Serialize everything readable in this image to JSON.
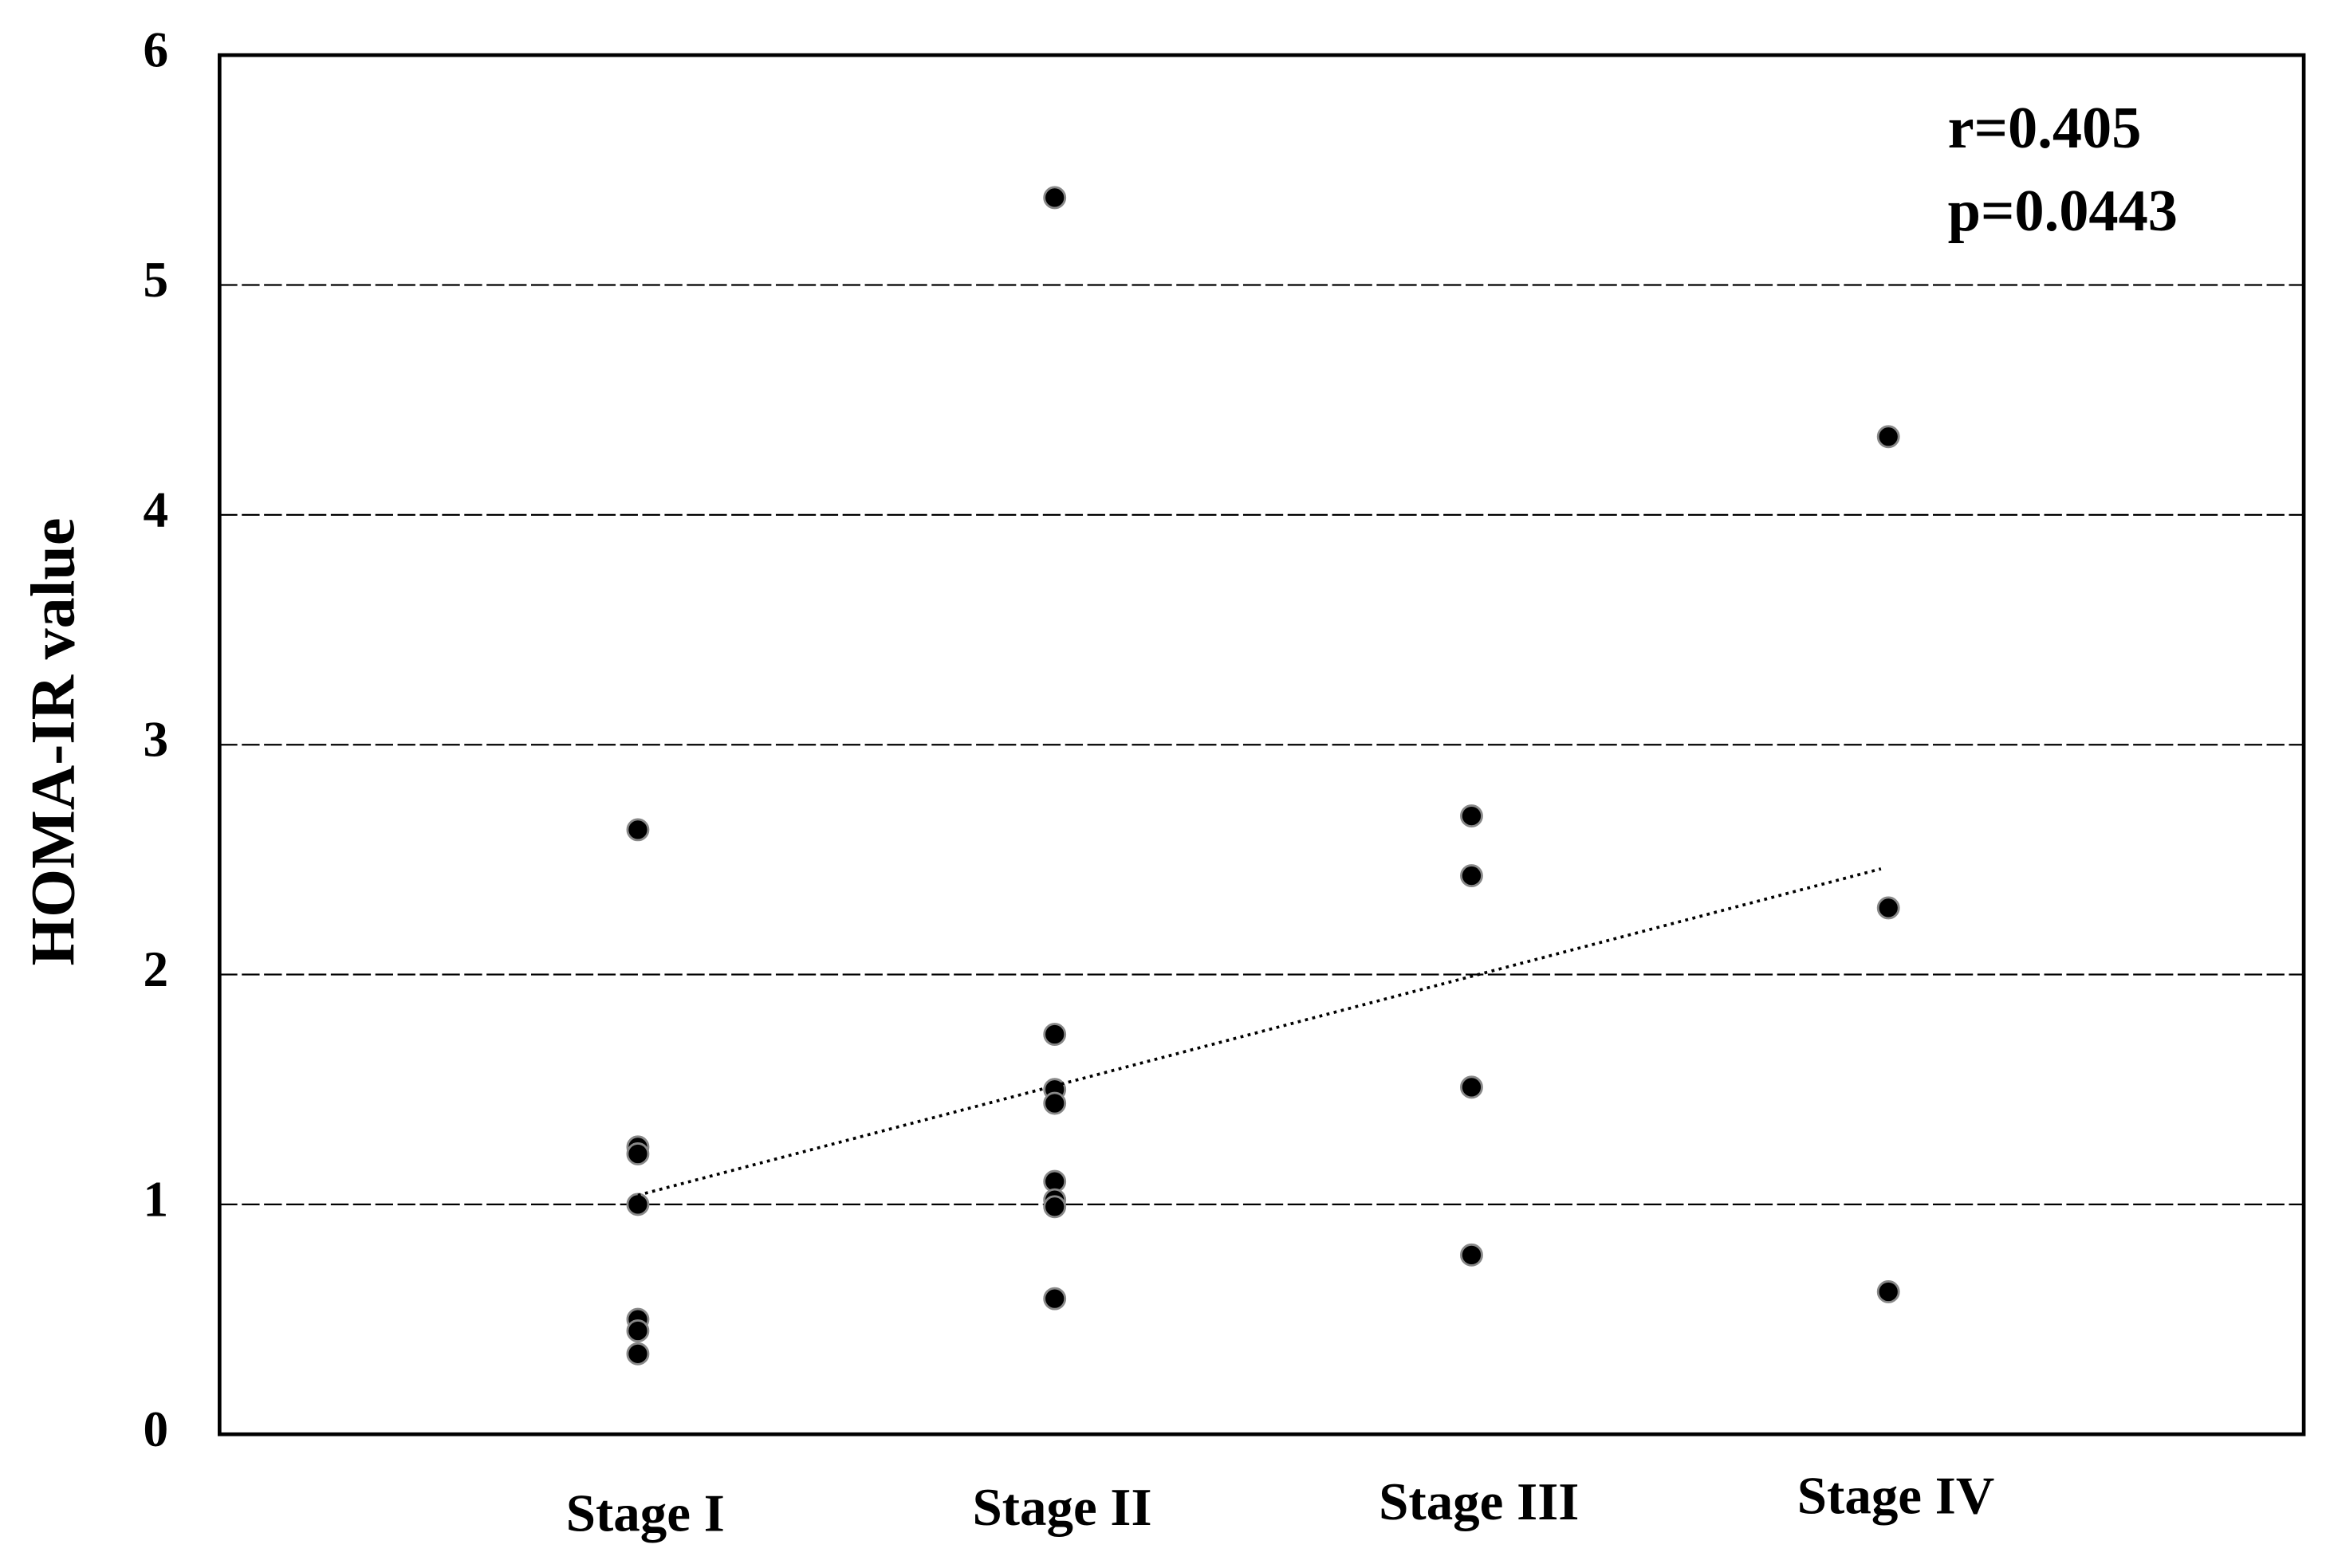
{
  "chart_data": {
    "type": "scatter",
    "y_label": "HOMA-IR value",
    "categories": [
      "Stage I",
      "Stage II",
      "Stage III",
      "Stage IV"
    ],
    "groups": [
      [
        2.63,
        1.25,
        1.22,
        1.0,
        0.5,
        0.45,
        0.35
      ],
      [
        5.38,
        1.74,
        1.5,
        1.44,
        1.1,
        1.02,
        0.99,
        0.59
      ],
      [
        2.69,
        2.43,
        1.51,
        0.78
      ],
      [
        4.34,
        2.29,
        0.62
      ]
    ],
    "color": "#000000",
    "trendline": [
      1.04,
      2.46
    ],
    "annotations": [
      "r=0.405",
      "p=0.0443"
    ],
    "ylim": [
      0,
      6
    ],
    "yticks": [
      0,
      1,
      2,
      3,
      4,
      5,
      6
    ],
    "grid": true
  }
}
